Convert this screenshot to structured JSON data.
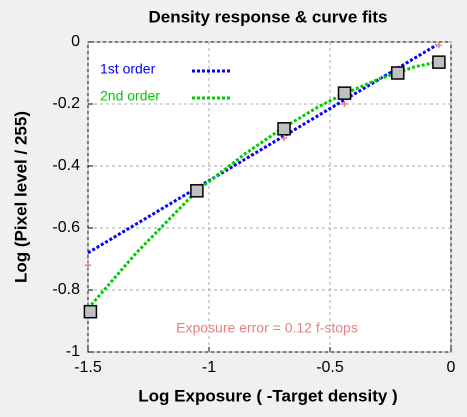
{
  "chart_data": {
    "type": "line",
    "title": "Density response & curve fits",
    "xlabel": "Log Exposure ( -Target density )",
    "ylabel": "Log (Pixel level / 255)",
    "annotation": "Exposure error = 0.12 f-stops",
    "xlim": [
      -1.5,
      0
    ],
    "ylim": [
      -1,
      0
    ],
    "xticks": [
      -1.5,
      -1,
      -0.5,
      0
    ],
    "yticks": [
      0,
      -0.2,
      -0.4,
      -0.6,
      -0.8,
      -1
    ],
    "grid": true,
    "series": [
      {
        "name": "1st order",
        "color": "#0000ff",
        "style": "dotted",
        "x": [
          -1.5,
          -0.06
        ],
        "values": [
          -0.68,
          -0.01
        ]
      },
      {
        "name": "2nd order",
        "color": "#00cc00",
        "style": "dotted",
        "x": [
          -1.5,
          -1.3,
          -1.05,
          -0.85,
          -0.7,
          -0.55,
          -0.45,
          -0.3,
          -0.15,
          -0.06
        ],
        "values": [
          -0.86,
          -0.68,
          -0.48,
          -0.36,
          -0.28,
          -0.21,
          -0.17,
          -0.12,
          -0.08,
          -0.065
        ]
      },
      {
        "color": "#c0c0c0",
        "style": "square",
        "x": [
          -1.49,
          -1.05,
          -0.69,
          -0.44,
          -0.22,
          -0.05
        ],
        "values": [
          -0.87,
          -0.48,
          -0.28,
          -0.165,
          -0.1,
          -0.065
        ]
      },
      {
        "color": "#e88080",
        "style": "plus",
        "x": [
          -1.5,
          -0.69,
          -0.44,
          -0.05
        ],
        "values": [
          -0.72,
          -0.31,
          -0.2,
          -0.01
        ]
      }
    ]
  }
}
